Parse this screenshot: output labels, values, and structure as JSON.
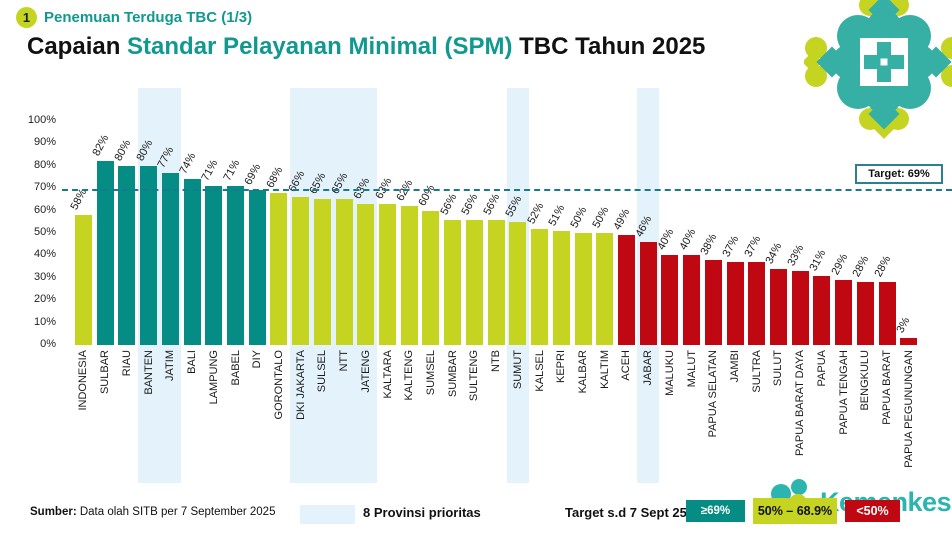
{
  "header": {
    "badge": "1",
    "kicker": "Penemuan Terduga TBC (1/3)",
    "title_part1": "Capaian ",
    "title_highlight": "Standar Pelayanan Minimal (SPM)",
    "title_part2": " TBC Tahun 2025"
  },
  "colors": {
    "teal": "#058D85",
    "yellow_green": "#C5D420",
    "red": "#C00812",
    "highlight_band": "#E4F3FB",
    "target_line": "#1B7A8A",
    "title_accent": "#12998F",
    "watermark": "#2BB5AE"
  },
  "chart_data": {
    "type": "bar",
    "title": "Capaian Standar Pelayanan Minimal (SPM) TBC Tahun 2025",
    "unit": "%",
    "ylim": [
      0,
      100
    ],
    "y_ticks": [
      "100%",
      "90%",
      "80%",
      "70%",
      "60%",
      "50%",
      "40%",
      "30%",
      "20%",
      "10%",
      "0%"
    ],
    "grid": "off",
    "legend_position": "bottom",
    "target_value": 69,
    "target_label": "Target: 69%",
    "categories": [
      "INDONESIA",
      "SULBAR",
      "RIAU",
      "BANTEN",
      "JATIM",
      "BALI",
      "LAMPUNG",
      "BABEL",
      "DIY",
      "GORONTALO",
      "DKI JAKARTA",
      "SULSEL",
      "NTT",
      "JATENG",
      "KALTARA",
      "KALTENG",
      "SUMSEL",
      "SUMBAR",
      "SULTENG",
      "NTB",
      "SUMUT",
      "KALSEL",
      "KEPRI",
      "KALBAR",
      "KALTIM",
      "ACEH",
      "JABAR",
      "MALUKU",
      "MALUT",
      "PAPUA SELATAN",
      "JAMBI",
      "SULTRA",
      "SULUT",
      "PAPUA BARAT DAYA",
      "PAPUA",
      "PAPUA TENGAH",
      "BENGKULU",
      "PAPUA BARAT",
      "PAPUA PEGUNUNGAN"
    ],
    "values": [
      58,
      82,
      80,
      80,
      77,
      74,
      71,
      71,
      69,
      68,
      66,
      65,
      65,
      63,
      63,
      62,
      60,
      56,
      56,
      56,
      55,
      52,
      51,
      50,
      50,
      49,
      46,
      40,
      40,
      38,
      37,
      37,
      34,
      33,
      31,
      29,
      28,
      28,
      3
    ],
    "thresholds": {
      "high_min": 69,
      "mid_min": 50
    },
    "bar_colors": {
      "high": "#058D85",
      "mid": "#C5D420",
      "low": "#C00812"
    },
    "priority_categories": [
      "BANTEN",
      "JATIM",
      "DKI JAKARTA",
      "SULSEL",
      "NTT",
      "JATENG",
      "SUMUT",
      "JABAR"
    ],
    "highlight_band_color": "#E4F3FB"
  },
  "footer": {
    "source_label": "Sumber:",
    "source_text": " Data olah SITB per 7 September 2025",
    "priority_label": "8 Provinsi prioritas",
    "legend_title": "Target s.d 7 Sept 25",
    "legend": [
      {
        "label": "≥69%",
        "color": "#058D85",
        "text_color": "#ffffff"
      },
      {
        "label": "50% – 68.9%",
        "color": "#C5D420",
        "text_color": "#111111"
      },
      {
        "label": "<50%",
        "color": "#C00812",
        "text_color": "#ffffff"
      }
    ]
  },
  "watermark": {
    "text": "Kemenkes"
  }
}
